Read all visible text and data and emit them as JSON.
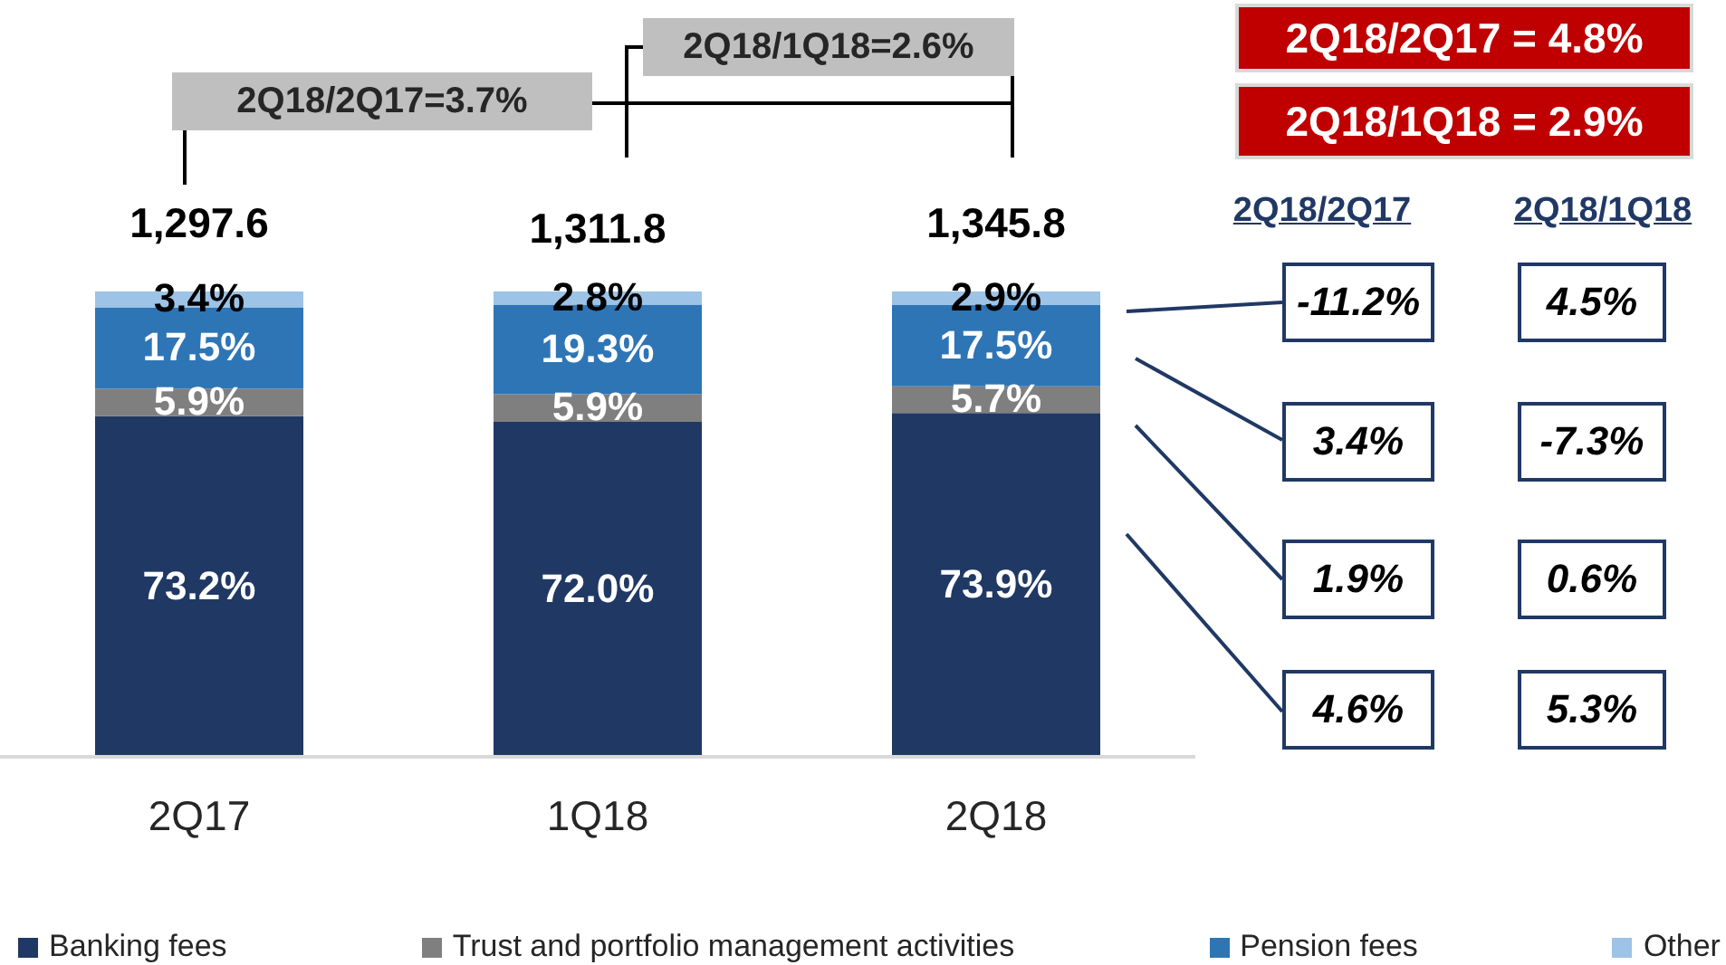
{
  "chart_data": {
    "type": "bar",
    "stacked": true,
    "categories": [
      "2Q17",
      "1Q18",
      "2Q18"
    ],
    "series": [
      {
        "name": "Banking fees",
        "color": "#203864",
        "values": [
          73.2,
          72.0,
          73.9
        ],
        "value_labels": [
          "73.2%",
          "72.0%",
          "73.9%"
        ]
      },
      {
        "name": "Trust and portfolio management activities",
        "color": "#7f7f7f",
        "values": [
          5.9,
          5.9,
          5.7
        ],
        "value_labels": [
          "5.9%",
          "5.9%",
          "5.7%"
        ]
      },
      {
        "name": "Pension fees",
        "color": "#2e75b6",
        "values": [
          17.5,
          19.3,
          17.5
        ],
        "value_labels": [
          "17.5%",
          "19.3%",
          "17.5%"
        ]
      },
      {
        "name": "Other",
        "color": "#9dc3e6",
        "values": [
          3.4,
          2.8,
          2.9
        ],
        "value_labels": [
          "3.4%",
          "2.8%",
          "2.9%"
        ]
      }
    ],
    "ylim": [
      0,
      100
    ],
    "tick_labels": "x",
    "legend": "bottom",
    "annotations": [
      "1,297.6",
      "1,311.8",
      "1,345.8",
      "2Q18/2Q17=3.7%",
      "2Q18/1Q18=2.6%",
      "2Q18/2Q17 = 4.8%",
      "2Q18/1Q18 = 2.9%",
      "2Q18/2Q17",
      "2Q18/1Q18",
      "-11.2%",
      "4.5%",
      "3.4%",
      "-7.3%",
      "1.9%",
      "0.6%",
      "4.6%",
      "5.3%"
    ]
  }
}
